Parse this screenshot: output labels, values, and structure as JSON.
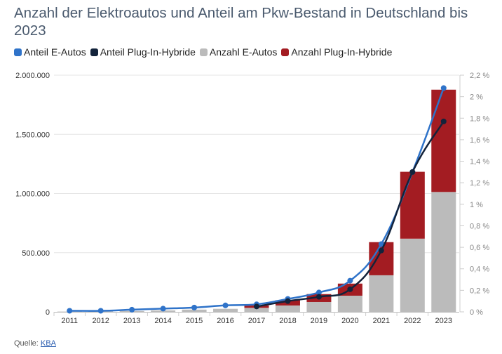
{
  "title": "Anzahl der Elektroautos und Anteil am Pkw-Bestand in Deutschland bis 2023",
  "legend": [
    {
      "label": "Anteil E-Autos",
      "color": "#2f73c9"
    },
    {
      "label": "Anteil Plug-In-Hybride",
      "color": "#13233b"
    },
    {
      "label": "Anzahl E-Autos",
      "color": "#bbbbbb"
    },
    {
      "label": "Anzahl Plug-In-Hybride",
      "color": "#a31c22"
    }
  ],
  "source": {
    "label": "Quelle:",
    "link_text": "KBA"
  },
  "chart_data": {
    "type": "bar",
    "categories": [
      "2011",
      "2012",
      "2013",
      "2014",
      "2015",
      "2016",
      "2017",
      "2018",
      "2019",
      "2020",
      "2021",
      "2022",
      "2023"
    ],
    "bar_series": [
      {
        "name": "Anzahl E-Autos",
        "color": "#bbbbbb",
        "values": [
          2300,
          4500,
          7100,
          12200,
          18900,
          25500,
          34000,
          53900,
          83200,
          136600,
          309100,
          618500,
          1013000
        ]
      },
      {
        "name": "Anzahl Plug-In-Hybride",
        "color": "#a31c22",
        "values": [
          0,
          0,
          0,
          0,
          0,
          0,
          20900,
          44400,
          66900,
          102200,
          279900,
          565000,
          864000
        ]
      }
    ],
    "line_series": [
      {
        "name": "Anteil E-Autos",
        "color": "#2f73c9",
        "x": [
          "2011",
          "2012",
          "2013",
          "2014",
          "2015",
          "2016",
          "2017",
          "2018",
          "2019",
          "2020",
          "2021",
          "2022",
          "2023"
        ],
        "values": [
          0.01,
          0.01,
          0.02,
          0.03,
          0.04,
          0.06,
          0.07,
          0.12,
          0.18,
          0.29,
          0.63,
          1.3,
          2.08
        ]
      },
      {
        "name": "Anteil Plug-In-Hybride",
        "color": "#13233b",
        "x": [
          "2017",
          "2018",
          "2019",
          "2020",
          "2021",
          "2022",
          "2023"
        ],
        "values": [
          0.05,
          0.1,
          0.14,
          0.21,
          0.57,
          1.3,
          1.77
        ]
      }
    ],
    "y_left": {
      "min": 0,
      "max": 2000000,
      "ticks": [
        "0",
        "500.000",
        "1.000.000",
        "1.500.000",
        "2.000.000"
      ],
      "tick_values": [
        0,
        500000,
        1000000,
        1500000,
        2000000
      ]
    },
    "y_right": {
      "min": 0,
      "max": 2.2,
      "unit": "%",
      "ticks": [
        "0 %",
        "0,2 %",
        "0,4 %",
        "0,6 %",
        "0,8 %",
        "1 %",
        "1,2 %",
        "1,4 %",
        "1,6 %",
        "1,8 %",
        "2 %",
        "2,2 %"
      ],
      "tick_values": [
        0,
        0.2,
        0.4,
        0.6,
        0.8,
        1.0,
        1.2,
        1.4,
        1.6,
        1.8,
        2.0,
        2.2
      ]
    },
    "grid": true,
    "legend_position": "top-left"
  }
}
